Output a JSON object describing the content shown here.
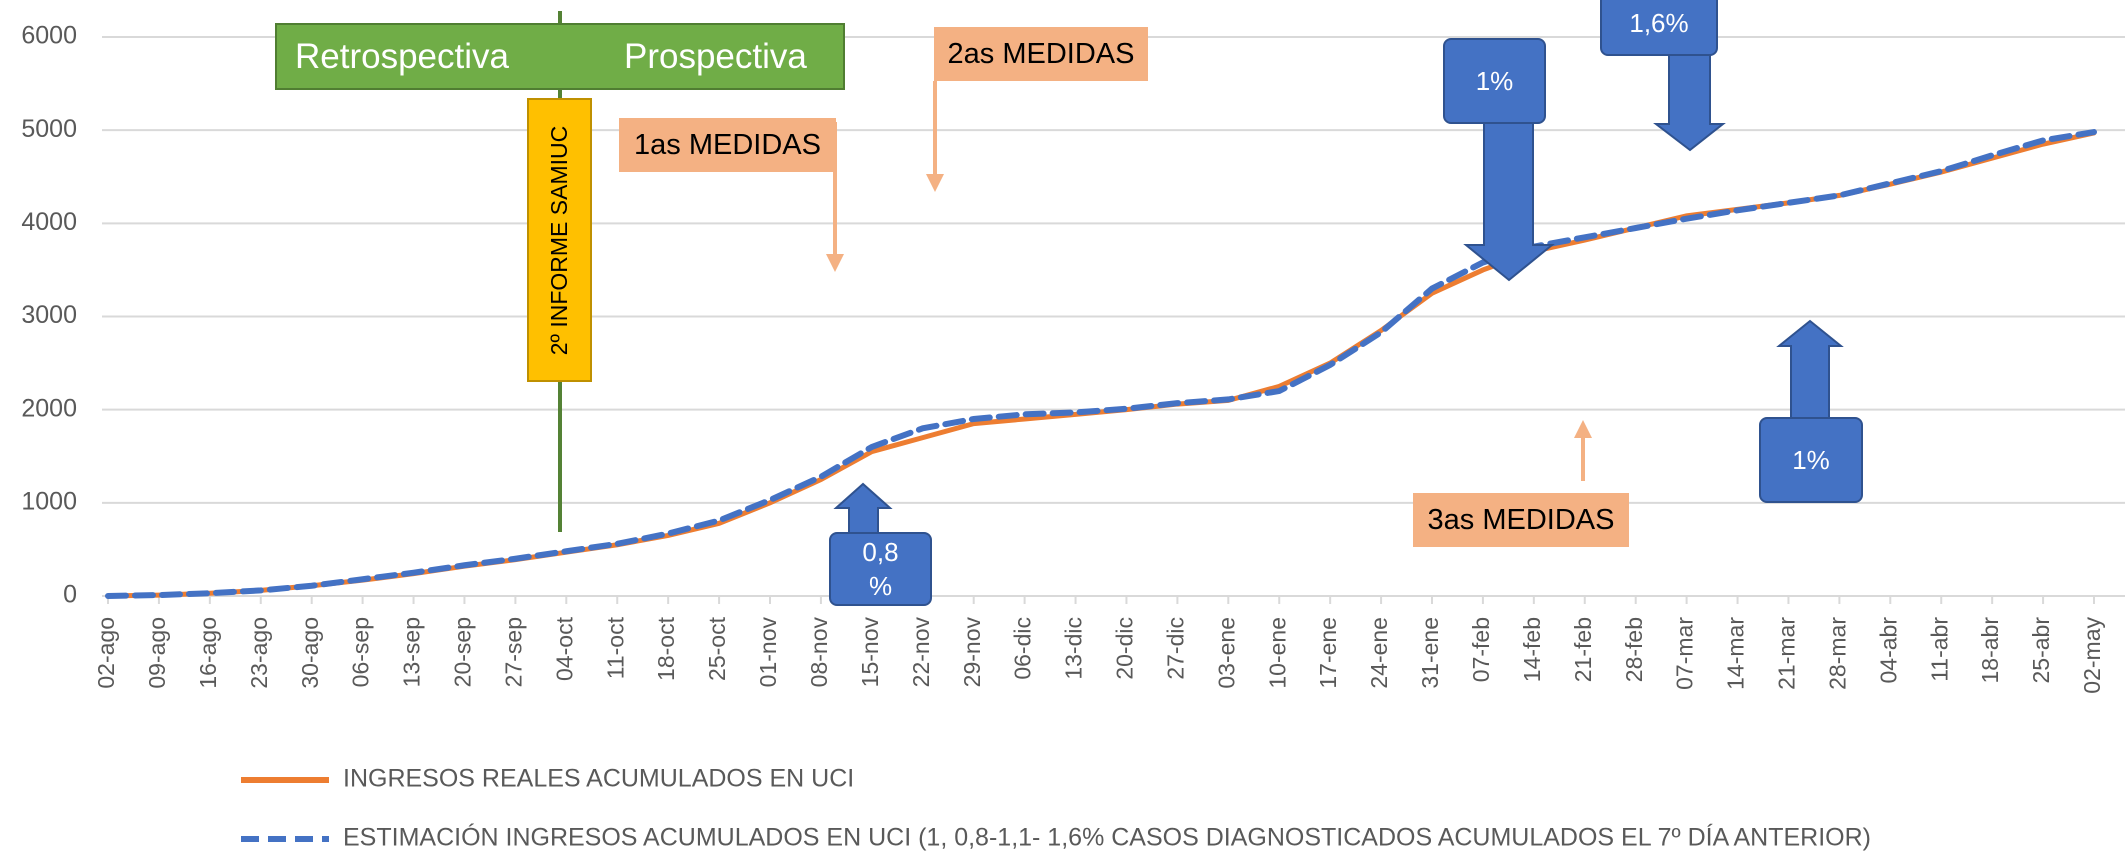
{
  "chart_data": {
    "type": "line",
    "categories": [
      "02-ago",
      "09-ago",
      "16-ago",
      "23-ago",
      "30-ago",
      "06-sep",
      "13-sep",
      "20-sep",
      "27-sep",
      "04-oct",
      "11-oct",
      "18-oct",
      "25-oct",
      "01-nov",
      "08-nov",
      "15-nov",
      "22-nov",
      "29-nov",
      "06-dic",
      "13-dic",
      "20-dic",
      "27-dic",
      "03-ene",
      "10-ene",
      "17-ene",
      "24-ene",
      "31-ene",
      "07-feb",
      "14-feb",
      "21-feb",
      "28-feb",
      "07-mar",
      "14-mar",
      "21-mar",
      "28-mar",
      "04-abr",
      "11-abr",
      "18-abr",
      "25-abr",
      "02-may"
    ],
    "series": [
      {
        "name": "INGRESOS REALES ACUMULADOS EN UCI",
        "color": "#ed7d31",
        "dashed": false,
        "values": [
          0,
          10,
          30,
          60,
          110,
          170,
          240,
          320,
          390,
          470,
          550,
          650,
          780,
          1000,
          1250,
          1550,
          1700,
          1850,
          1900,
          1950,
          2000,
          2060,
          2100,
          2250,
          2500,
          2850,
          3250,
          3500,
          3700,
          3820,
          3950,
          4080,
          4150,
          4220,
          4300,
          4420,
          4550,
          4700,
          4850,
          4970
        ]
      },
      {
        "name": "ESTIMACIÓN INGRESOS ACUMULADOS EN UCI (1, 0,8-1,1- 1,6% CASOS DIAGNOSTICADOS ACUMULADOS EL 7º DÍA ANTERIOR)",
        "color": "#4472c4",
        "dashed": true,
        "values": [
          0,
          10,
          30,
          60,
          110,
          180,
          250,
          330,
          400,
          480,
          560,
          670,
          810,
          1030,
          1280,
          1600,
          1800,
          1900,
          1950,
          1970,
          2010,
          2070,
          2110,
          2200,
          2480,
          2830,
          3300,
          3580,
          3750,
          3850,
          3950,
          4050,
          4140,
          4220,
          4300,
          4430,
          4560,
          4730,
          4890,
          4980
        ]
      }
    ],
    "ylim": [
      0,
      6000
    ],
    "yticks": [
      0,
      1000,
      2000,
      3000,
      4000,
      5000,
      6000
    ],
    "grid": true,
    "legend": "bottom",
    "annotations": {
      "retro": "Retrospectiva",
      "pros": "Prospectiva",
      "informe": "2º INFORME SAMIUC",
      "m1": "1as MEDIDAS",
      "m2": "2as MEDIDAS",
      "m3": "3as MEDIDAS",
      "p1a": "1%",
      "p16": "1,6%",
      "p1b": "1%",
      "p08": "0,8 %"
    }
  }
}
